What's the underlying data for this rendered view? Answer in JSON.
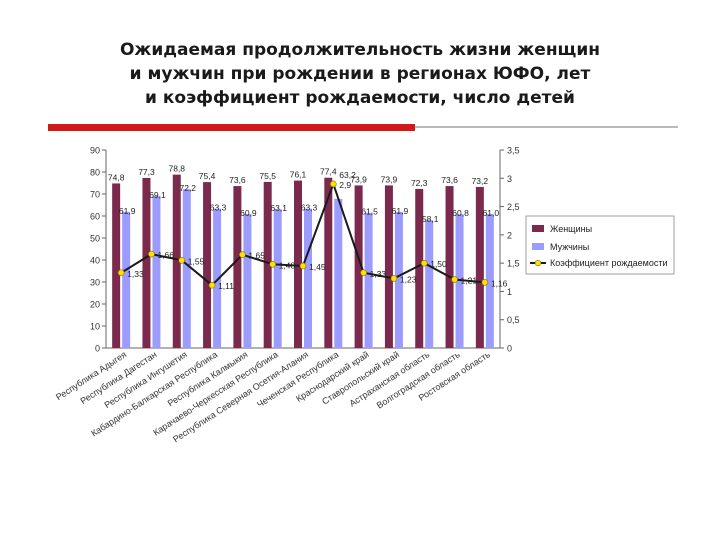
{
  "page": {
    "title_lines": [
      "Ожидаемая продолжительность жизни женщин",
      "и мужчин при рождении в регионах ЮФО, лет",
      "и коэффициент рождаемости, число детей"
    ]
  },
  "colors": {
    "women_bar": "#7b2a4e",
    "men_bar": "#9c9cff",
    "fertility_line": "#1a1a1a",
    "fertility_marker": "#ffe000",
    "accent_rule": "#d21a1a"
  },
  "chart_data": {
    "type": "bar",
    "categories": [
      "Республика Адыгея",
      "Республика Дагестан",
      "Республика Ингушетия",
      "Кабардино-Балкарская Республика",
      "Республика Калмыкия",
      "Карачаево-Черкесская Республика",
      "Республика Северная Осетия-Алания",
      "Чеченская Республика",
      "Краснодарский край",
      "Ставропольский край",
      "Астраханская область",
      "Волгоградская область",
      "Ростовская область"
    ],
    "series": [
      {
        "name": "Женщины",
        "axis": "left",
        "type": "bar",
        "values": [
          74.8,
          77.3,
          78.8,
          75.4,
          73.6,
          75.5,
          76.1,
          77.4,
          73.9,
          73.9,
          72.3,
          73.6,
          73.2
        ],
        "labels": [
          "74,8",
          "77,3",
          "78,8",
          "75,4",
          "73,6",
          "75,5",
          "76,1",
          "77,4",
          "73,9",
          "73,9",
          "72,3",
          "73,6",
          "73,2"
        ]
      },
      {
        "name": "Мужчины",
        "axis": "left",
        "type": "bar",
        "values": [
          61.9,
          69.1,
          72.2,
          63.3,
          60.9,
          63.1,
          63.3,
          67.8,
          61.5,
          61.9,
          58.1,
          60.8,
          61.0
        ],
        "labels": [
          "61,9",
          "69,1",
          "72,2",
          "63,3",
          "60,9",
          "63,1",
          "63,3",
          "",
          "61,5",
          "61,9",
          "58,1",
          "60,8",
          "61,0"
        ]
      },
      {
        "name": "Коэффициент рождаемости",
        "axis": "right",
        "type": "line",
        "values": [
          1.33,
          1.66,
          1.55,
          1.11,
          1.65,
          1.48,
          1.45,
          2.9,
          1.33,
          1.23,
          1.5,
          1.21,
          1.16
        ],
        "labels": [
          "1,33",
          "1,66",
          "1,55",
          "1,11",
          "1,65",
          "1,48",
          "1,45",
          "2,9",
          "1,33",
          "1,23",
          "1,50",
          "1,21",
          "1,16"
        ]
      }
    ],
    "y_left": {
      "ylim": [
        0,
        90
      ],
      "ticks": [
        "0",
        "10",
        "20",
        "30",
        "40",
        "50",
        "60",
        "70",
        "80",
        "90"
      ]
    },
    "y_right": {
      "ylim": [
        0,
        3.5
      ],
      "ticks": [
        "0",
        "0,5",
        "1",
        "1,5",
        "2",
        "2,5",
        "3",
        "3,5"
      ]
    },
    "callout_label": "63,2",
    "grid": false,
    "legend_position": "right",
    "legend": [
      "Женщины",
      "Мужчины",
      "Коэффициент рождаемости"
    ]
  }
}
